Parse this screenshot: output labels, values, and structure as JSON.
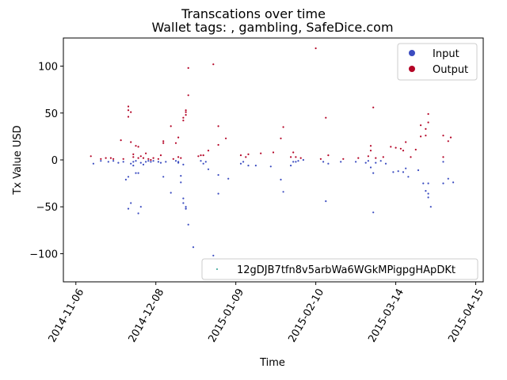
{
  "chart_data": {
    "type": "scatter",
    "title": "Transcations over time",
    "subtitle": "Wallet tags: , gambling, SafeDice.com",
    "xlabel": "Time",
    "ylabel": "Tx Value USD",
    "xlim": [
      "2014-11-01",
      "2015-04-18"
    ],
    "ylim": [
      -130,
      130
    ],
    "x_ticks": [
      "2014-11-06",
      "2014-12-08",
      "2015-01-09",
      "2015-02-10",
      "2015-03-14",
      "2015-04-15"
    ],
    "y_ticks": [
      -100,
      -50,
      0,
      50,
      100
    ],
    "grid": false,
    "legends": {
      "series_legend": {
        "placement": "top-right",
        "entries": [
          "Input",
          "Output"
        ]
      },
      "address_legend": {
        "placement": "lower-right",
        "entries": [
          "12gDJB7tfn8v5arbWa6WGkMPigpgHApDKt"
        ]
      }
    },
    "colors": {
      "input": "#3b4cc0",
      "output": "#b40426",
      "address": "#2a9d8f"
    },
    "series": [
      {
        "name": "Input",
        "points": [
          [
            "2014-11-13",
            -4
          ],
          [
            "2014-11-16",
            -1
          ],
          [
            "2014-11-19",
            -2
          ],
          [
            "2014-11-21",
            -1
          ],
          [
            "2014-11-23",
            -3
          ],
          [
            "2014-11-25",
            -2
          ],
          [
            "2014-11-26",
            -21
          ],
          [
            "2014-11-27",
            -18
          ],
          [
            "2014-11-27",
            -52
          ],
          [
            "2014-11-28",
            -46
          ],
          [
            "2014-11-28",
            -4
          ],
          [
            "2014-11-29",
            -2
          ],
          [
            "2014-11-29",
            -6
          ],
          [
            "2014-11-30",
            -14
          ],
          [
            "2014-11-30",
            -1
          ],
          [
            "2014-12-01",
            -57
          ],
          [
            "2014-12-01",
            -14
          ],
          [
            "2014-12-02",
            -50
          ],
          [
            "2014-12-02",
            -3
          ],
          [
            "2014-12-03",
            -5
          ],
          [
            "2014-12-04",
            -2
          ],
          [
            "2014-12-05",
            -1
          ],
          [
            "2014-12-06",
            -2
          ],
          [
            "2014-12-07",
            -1
          ],
          [
            "2014-12-09",
            -2
          ],
          [
            "2014-12-10",
            -3
          ],
          [
            "2014-12-11",
            -18
          ],
          [
            "2014-12-12",
            -2
          ],
          [
            "2014-12-14",
            -35
          ],
          [
            "2014-12-16",
            -1
          ],
          [
            "2014-12-17",
            -2
          ],
          [
            "2014-12-17",
            -3
          ],
          [
            "2014-12-18",
            -17
          ],
          [
            "2014-12-18",
            -24
          ],
          [
            "2014-12-19",
            -5
          ],
          [
            "2014-12-19",
            -41
          ],
          [
            "2014-12-19",
            -46
          ],
          [
            "2014-12-20",
            -50
          ],
          [
            "2014-12-20",
            -52
          ],
          [
            "2014-12-20",
            -52
          ],
          [
            "2014-12-21",
            -69
          ],
          [
            "2014-12-23",
            -93
          ],
          [
            "2014-12-26",
            -1
          ],
          [
            "2014-12-27",
            -4
          ],
          [
            "2014-12-28",
            -2
          ],
          [
            "2014-12-29",
            -10
          ],
          [
            "2014-12-31",
            -102
          ],
          [
            "2015-01-02",
            -16
          ],
          [
            "2015-01-02",
            -36
          ],
          [
            "2015-01-06",
            -20
          ],
          [
            "2015-01-11",
            -4
          ],
          [
            "2015-01-12",
            -2
          ],
          [
            "2015-01-14",
            -6
          ],
          [
            "2015-01-17",
            -6
          ],
          [
            "2015-01-23",
            -7
          ],
          [
            "2015-01-27",
            -21
          ],
          [
            "2015-01-28",
            -34
          ],
          [
            "2015-01-31",
            -6
          ],
          [
            "2015-02-01",
            -2
          ],
          [
            "2015-02-02",
            -2
          ],
          [
            "2015-02-03",
            -1
          ],
          [
            "2015-02-05",
            0
          ],
          [
            "2015-02-13",
            -2
          ],
          [
            "2015-02-14",
            -44
          ],
          [
            "2015-02-15",
            -4
          ],
          [
            "2015-02-20",
            -2
          ],
          [
            "2015-02-26",
            -2
          ],
          [
            "2015-03-02",
            -3
          ],
          [
            "2015-03-03",
            -1
          ],
          [
            "2015-03-04",
            -8
          ],
          [
            "2015-03-05",
            -14
          ],
          [
            "2015-03-05",
            -56
          ],
          [
            "2015-03-06",
            -3
          ],
          [
            "2015-03-08",
            -1
          ],
          [
            "2015-03-10",
            -4
          ],
          [
            "2015-03-13",
            -13
          ],
          [
            "2015-03-15",
            -12
          ],
          [
            "2015-03-17",
            -13
          ],
          [
            "2015-03-18",
            -9
          ],
          [
            "2015-03-19",
            -18
          ],
          [
            "2015-03-23",
            -11
          ],
          [
            "2015-03-25",
            -25
          ],
          [
            "2015-03-26",
            -33
          ],
          [
            "2015-03-27",
            -25
          ],
          [
            "2015-03-27",
            -36
          ],
          [
            "2015-03-27",
            -40
          ],
          [
            "2015-03-28",
            -50
          ],
          [
            "2015-04-02",
            -25
          ],
          [
            "2015-04-04",
            -20
          ],
          [
            "2015-04-06",
            -24
          ],
          [
            "2015-04-02",
            -2
          ]
        ]
      },
      {
        "name": "Output",
        "points": [
          [
            "2014-11-12",
            4
          ],
          [
            "2014-11-16",
            1
          ],
          [
            "2014-11-18",
            2
          ],
          [
            "2014-11-20",
            2
          ],
          [
            "2014-11-21",
            1
          ],
          [
            "2014-11-24",
            21
          ],
          [
            "2014-11-25",
            1
          ],
          [
            "2014-11-27",
            57
          ],
          [
            "2014-11-27",
            53
          ],
          [
            "2014-11-27",
            46
          ],
          [
            "2014-11-28",
            51
          ],
          [
            "2014-11-28",
            19
          ],
          [
            "2014-11-29",
            6
          ],
          [
            "2014-11-29",
            3
          ],
          [
            "2014-11-30",
            15
          ],
          [
            "2014-12-01",
            14
          ],
          [
            "2014-12-01",
            2
          ],
          [
            "2014-12-02",
            4
          ],
          [
            "2014-12-03",
            2
          ],
          [
            "2014-12-04",
            7
          ],
          [
            "2014-12-05",
            1
          ],
          [
            "2014-12-06",
            0
          ],
          [
            "2014-12-07",
            2
          ],
          [
            "2014-12-09",
            1
          ],
          [
            "2014-12-10",
            5
          ],
          [
            "2014-12-11",
            18
          ],
          [
            "2014-12-11",
            20
          ],
          [
            "2014-12-14",
            36
          ],
          [
            "2014-12-15",
            1
          ],
          [
            "2014-12-16",
            18
          ],
          [
            "2014-12-17",
            24
          ],
          [
            "2014-12-17",
            3
          ],
          [
            "2014-12-18",
            2
          ],
          [
            "2014-12-19",
            42
          ],
          [
            "2014-12-19",
            45
          ],
          [
            "2014-12-20",
            48
          ],
          [
            "2014-12-20",
            51
          ],
          [
            "2014-12-20",
            53
          ],
          [
            "2014-12-21",
            69
          ],
          [
            "2014-12-21",
            98
          ],
          [
            "2014-12-25",
            4
          ],
          [
            "2014-12-26",
            5
          ],
          [
            "2014-12-27",
            5
          ],
          [
            "2014-12-29",
            10
          ],
          [
            "2014-12-31",
            102
          ],
          [
            "2015-01-02",
            16
          ],
          [
            "2015-01-02",
            36
          ],
          [
            "2015-01-05",
            23
          ],
          [
            "2015-01-11",
            5
          ],
          [
            "2015-01-13",
            3
          ],
          [
            "2015-01-14",
            6
          ],
          [
            "2015-01-19",
            7
          ],
          [
            "2015-01-24",
            8
          ],
          [
            "2015-01-27",
            23
          ],
          [
            "2015-01-28",
            35
          ],
          [
            "2015-01-31",
            3
          ],
          [
            "2015-02-01",
            8
          ],
          [
            "2015-02-02",
            3
          ],
          [
            "2015-02-04",
            2
          ],
          [
            "2015-02-10",
            119
          ],
          [
            "2015-02-12",
            1
          ],
          [
            "2015-02-14",
            45
          ],
          [
            "2015-02-15",
            5
          ],
          [
            "2015-02-21",
            1
          ],
          [
            "2015-02-27",
            2
          ],
          [
            "2015-03-03",
            4
          ],
          [
            "2015-03-04",
            10
          ],
          [
            "2015-03-04",
            15
          ],
          [
            "2015-03-05",
            56
          ],
          [
            "2015-03-06",
            2
          ],
          [
            "2015-03-09",
            3
          ],
          [
            "2015-03-12",
            14
          ],
          [
            "2015-03-14",
            13
          ],
          [
            "2015-03-16",
            12
          ],
          [
            "2015-03-17",
            10
          ],
          [
            "2015-03-18",
            19
          ],
          [
            "2015-03-20",
            3
          ],
          [
            "2015-03-22",
            11
          ],
          [
            "2015-03-24",
            37
          ],
          [
            "2015-03-24",
            25
          ],
          [
            "2015-03-26",
            26
          ],
          [
            "2015-03-26",
            33
          ],
          [
            "2015-03-27",
            40
          ],
          [
            "2015-03-27",
            49
          ],
          [
            "2015-04-02",
            26
          ],
          [
            "2015-04-04",
            20
          ],
          [
            "2015-04-05",
            24
          ],
          [
            "2015-04-02",
            3
          ]
        ]
      }
    ]
  }
}
